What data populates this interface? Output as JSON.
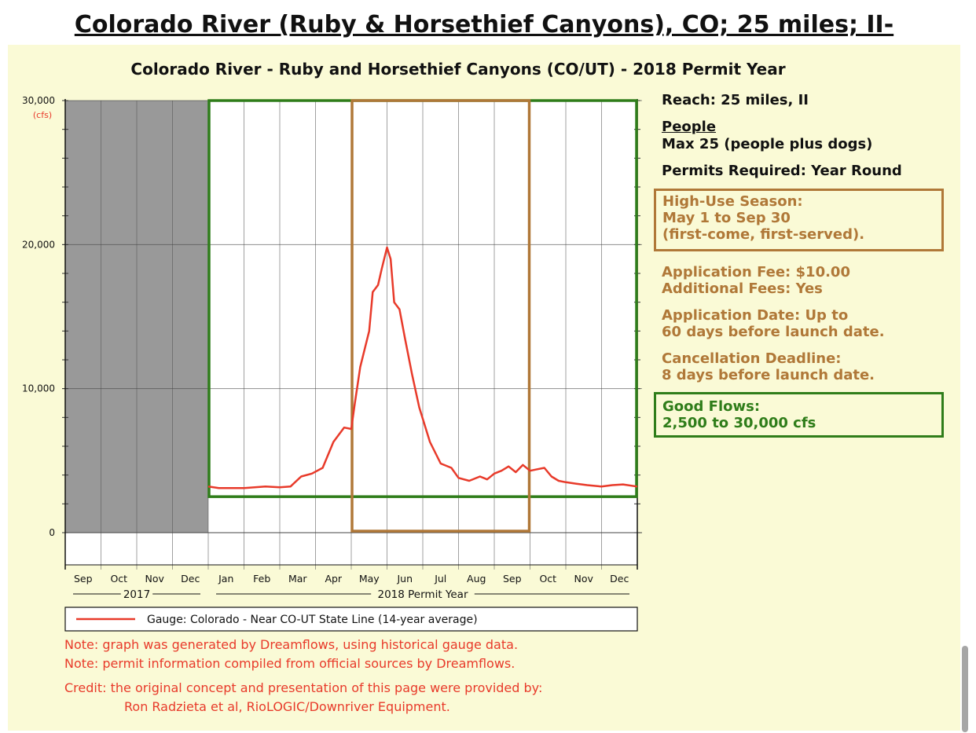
{
  "page_title": "Colorado River (Ruby & Horsethief Canyons), CO; 25 miles; II-",
  "colors": {
    "panel_bg": "#fafad6",
    "flow_line": "#e83a2a",
    "good_flows": "#2f7d1a",
    "high_use": "#b07838",
    "prior_year_shade": "#999999"
  },
  "chart_data": {
    "type": "line",
    "title": "Colorado River - Ruby and Horsethief Canyons (CO/UT) - 2018 Permit Year",
    "ylabel": "(cfs)",
    "ylim": [
      0,
      30000
    ],
    "yticks": [
      {
        "value": 0,
        "label": "0"
      },
      {
        "value": 10000,
        "label": "10,000"
      },
      {
        "value": 20000,
        "label": "20,000"
      },
      {
        "value": 30000,
        "label": "30,000"
      }
    ],
    "months": [
      "Sep",
      "Oct",
      "Nov",
      "Dec",
      "Jan",
      "Feb",
      "Mar",
      "Apr",
      "May",
      "Jun",
      "Jul",
      "Aug",
      "Sep",
      "Oct",
      "Nov",
      "Dec"
    ],
    "year_groups": [
      {
        "label": "2017",
        "start_month": 0,
        "end_month": 4
      },
      {
        "label": "2018 Permit Year",
        "start_month": 4,
        "end_month": 16
      }
    ],
    "shaded_region": {
      "start_month": 0,
      "end_month": 4
    },
    "good_flows_region": {
      "start_month": 4,
      "end_month": 16,
      "y_min": 2500,
      "y_max": 30000
    },
    "high_use_region": {
      "start_month": 8,
      "end_month": 13,
      "y_min": 0,
      "y_max": 30000
    },
    "series": [
      {
        "name": "Gauge: Colorado - Near CO-UT State Line (14-year average)",
        "x": [
          4.0,
          4.3,
          4.6,
          5.0,
          5.3,
          5.6,
          6.0,
          6.3,
          6.6,
          6.9,
          7.2,
          7.5,
          7.8,
          8.0,
          8.1,
          8.25,
          8.5,
          8.6,
          8.75,
          8.85,
          9.0,
          9.1,
          9.2,
          9.35,
          9.5,
          9.7,
          9.9,
          10.2,
          10.5,
          10.8,
          11.0,
          11.3,
          11.6,
          11.8,
          12.0,
          12.2,
          12.4,
          12.6,
          12.8,
          13.0,
          13.2,
          13.4,
          13.6,
          13.8,
          14.0,
          14.3,
          14.6,
          15.0,
          15.3,
          15.6,
          16.0
        ],
        "y": [
          3200,
          3100,
          3100,
          3100,
          3150,
          3200,
          3150,
          3200,
          3900,
          4100,
          4500,
          6300,
          7300,
          7200,
          9000,
          11500,
          14000,
          16700,
          17200,
          18300,
          19800,
          19000,
          16000,
          15500,
          13500,
          11000,
          8700,
          6300,
          4800,
          4500,
          3800,
          3600,
          3900,
          3700,
          4100,
          4300,
          4600,
          4200,
          4700,
          4300,
          4400,
          4500,
          3900,
          3600,
          3500,
          3400,
          3300,
          3200,
          3300,
          3350,
          3200
        ]
      }
    ]
  },
  "info_panel": {
    "reach": "Reach: 25 miles, II",
    "people_heading": "People",
    "people_max": "Max 25 (people plus dogs)",
    "permits": "Permits Required: Year Round",
    "high_use_line1": "High-Use Season:",
    "high_use_line2": "May 1 to Sep 30",
    "high_use_line3": "(first-come, first-served).",
    "fee_line1": "Application Fee: $10.00",
    "fee_line2": "Additional Fees: Yes",
    "app_date_line1": "Application Date: Up to",
    "app_date_line2": "60 days before launch date.",
    "cancel_line1": "Cancellation Deadline:",
    "cancel_line2": "8 days before launch date.",
    "good_flows_line1": "Good Flows:",
    "good_flows_line2": "2,500 to 30,000 cfs"
  },
  "notes": {
    "note1": "Note: graph was generated by Dreamflows, using historical gauge data.",
    "note2": "Note: permit information compiled from official sources by Dreamflows.",
    "credit1": "Credit: the original concept and presentation of this page were provided by:",
    "credit2": "Ron Radzieta et al, RioLOGIC/Downriver Equipment."
  }
}
